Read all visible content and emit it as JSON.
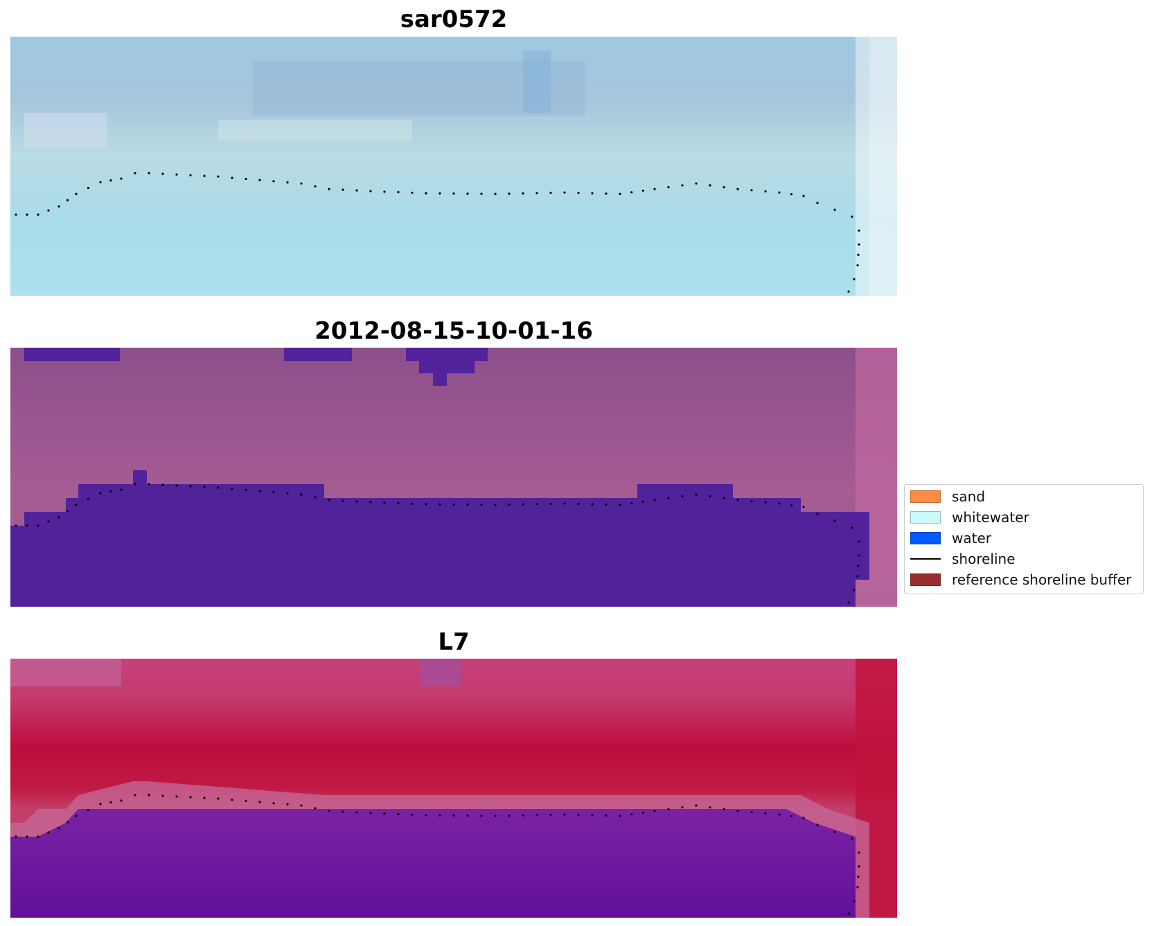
{
  "panels": [
    {
      "title": "sar0572"
    },
    {
      "title": "2012-08-15-10-01-16"
    },
    {
      "title": "L7"
    }
  ],
  "legend": {
    "items": [
      {
        "label": "sand",
        "color": "#ff8c42",
        "icon": "filled-rectangle"
      },
      {
        "label": "whitewater",
        "color": "#c8fafa",
        "icon": "filled-rectangle"
      },
      {
        "label": "water",
        "color": "#0058ff",
        "icon": "filled-rectangle"
      },
      {
        "label": "shoreline",
        "color": "#000000",
        "icon": "line"
      },
      {
        "label": "reference shoreline buffer",
        "color": "#9b2c30",
        "icon": "filled-rectangle"
      }
    ]
  },
  "colors": {
    "panel0_base": "#a9d8e6",
    "panel1_base": "#9a5a94",
    "panel1_mask": "#52229a",
    "panel2_base": "#c42456",
    "panel2_lower": "#6a119c",
    "panel2_buffer": "#c46a9a",
    "shoreline_dots": "#000000"
  }
}
